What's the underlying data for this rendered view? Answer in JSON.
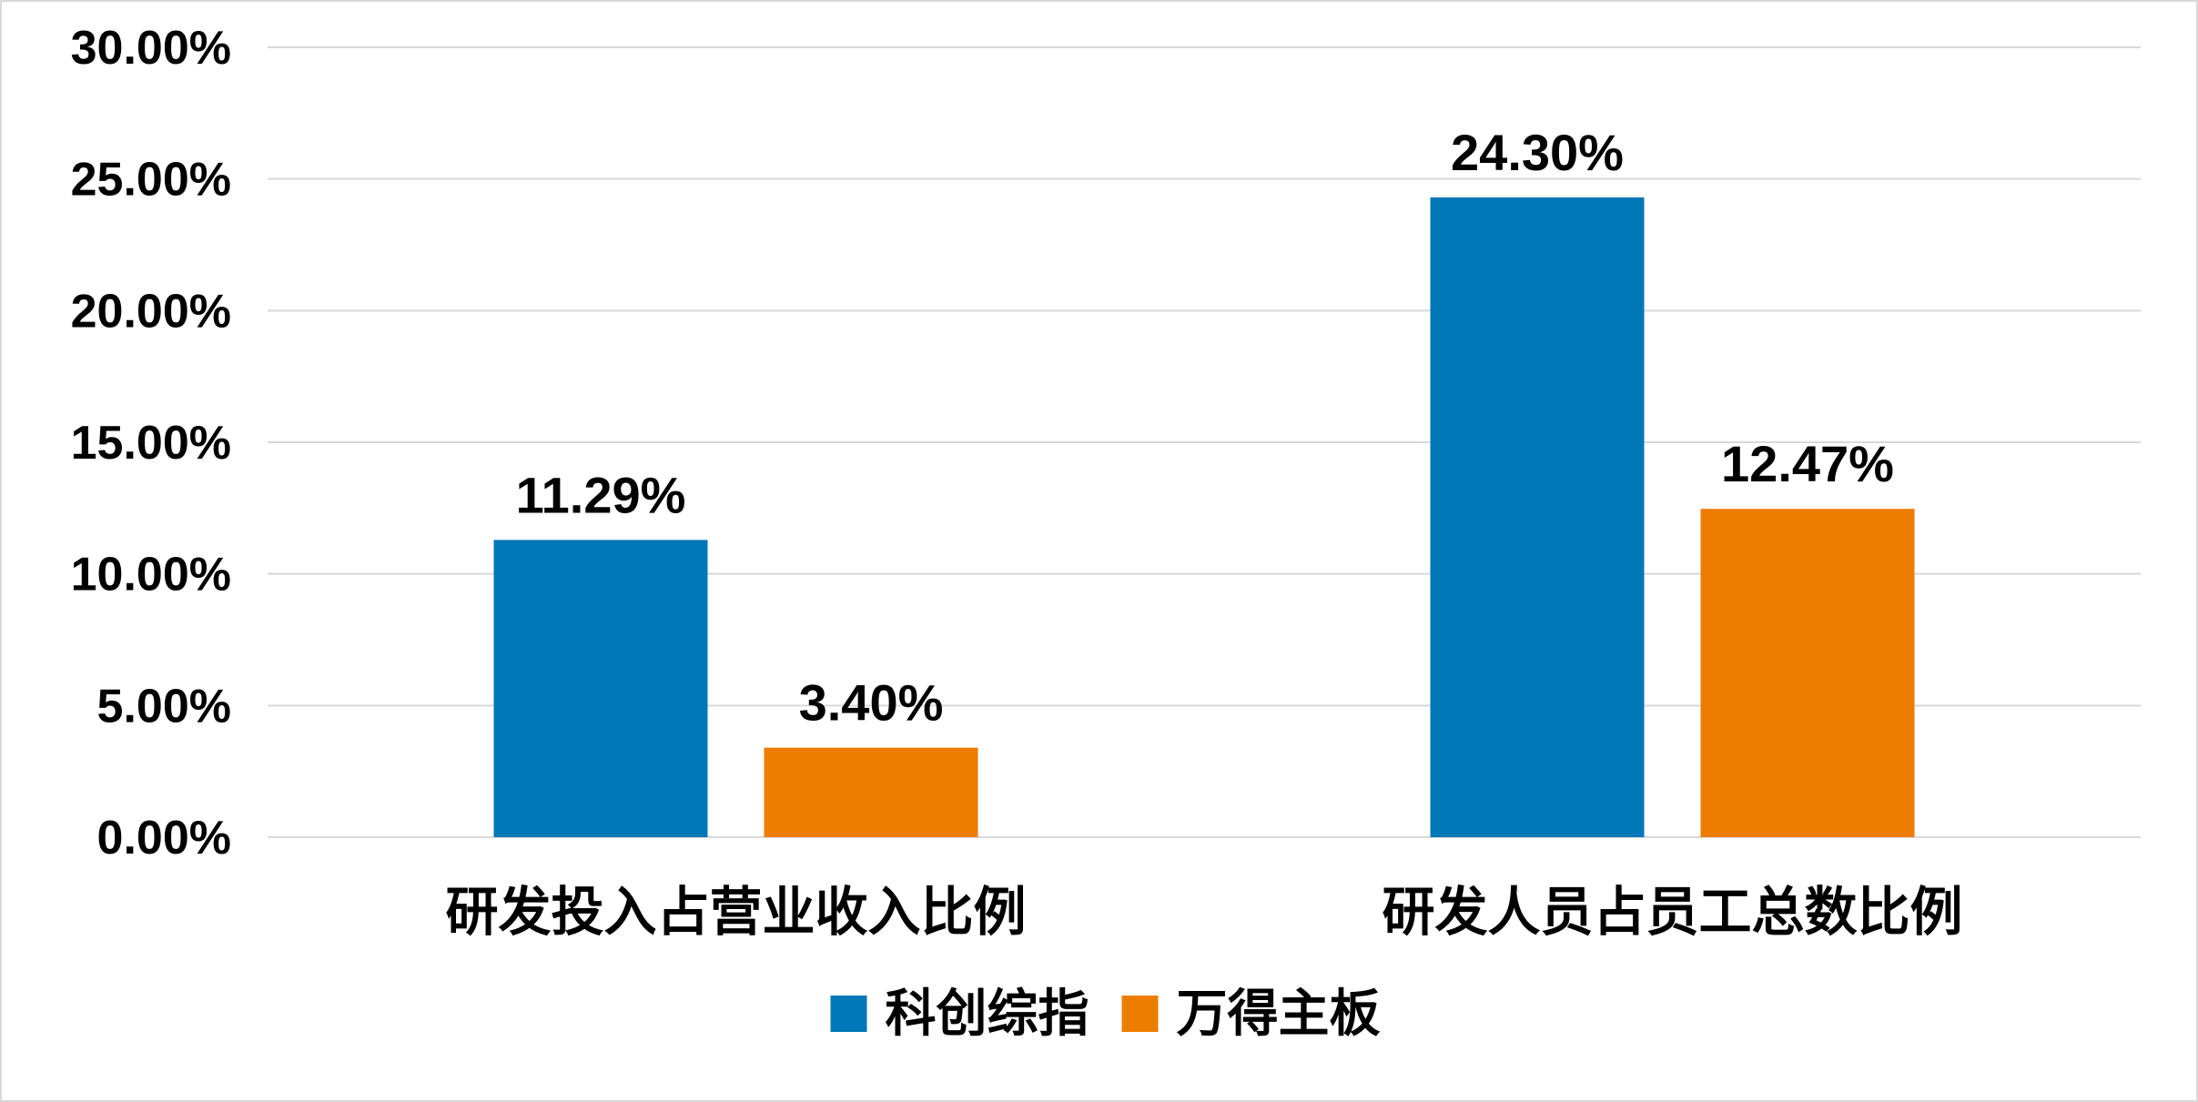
{
  "chart_data": {
    "type": "bar",
    "categories": [
      "研发投入占营业收入比例",
      "研发人员占员工总数比例"
    ],
    "series": [
      {
        "name": "科创综指",
        "values": [
          11.29,
          24.3
        ],
        "labels": [
          "11.29%",
          "24.30%"
        ],
        "color": "#0077B6"
      },
      {
        "name": "万得主板",
        "values": [
          3.4,
          12.47
        ],
        "labels": [
          "3.40%",
          "12.47%"
        ],
        "color": "#ED7D00"
      }
    ],
    "ylim": [
      0,
      30
    ],
    "yticks": [
      0,
      5,
      10,
      15,
      20,
      25,
      30
    ],
    "ytick_labels": [
      "0.00%",
      "5.00%",
      "10.00%",
      "15.00%",
      "20.00%",
      "25.00%",
      "30.00%"
    ],
    "grid": true,
    "legend": "bottom-center",
    "title": "",
    "xlabel": "",
    "ylabel": ""
  }
}
